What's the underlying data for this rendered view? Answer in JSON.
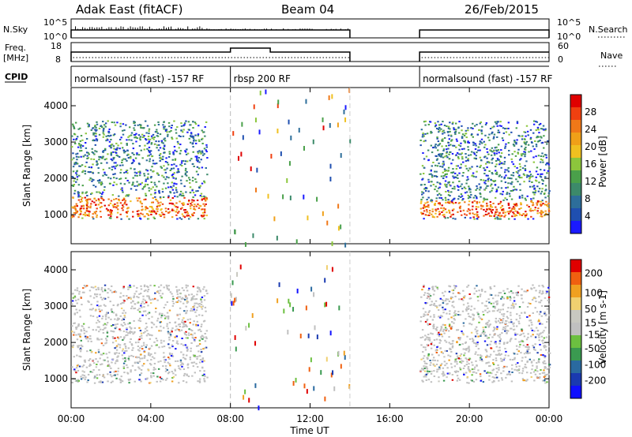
{
  "header": {
    "radar": "Adak East (fitACF)",
    "beam": "Beam 04",
    "date": "26/Feb/2015"
  },
  "strip_labels": {
    "nsky": "N.Sky",
    "nsky_ticks": [
      "10^5",
      "10^0"
    ],
    "nsearch": "N.Search",
    "nsearch_ticks": [
      "10^5",
      "10^0"
    ],
    "freq": "Freq.",
    "freq_unit": "[MHz]",
    "freq_ticks": [
      "18",
      "8"
    ],
    "nave": "Nave",
    "nave_ticks": [
      "60",
      "0"
    ],
    "cpid": "CPID"
  },
  "cpid_segments": [
    {
      "name": "normalsound (fast) -157 RF",
      "start_hour": 0.0,
      "end_hour": 8.0
    },
    {
      "name": "rbsp 200 RF",
      "start_hour": 8.0,
      "end_hour": 14.0
    },
    {
      "name": "normalsound (fast) -157 RF",
      "start_hour": 17.5,
      "end_hour": 24.0
    }
  ],
  "colors": {
    "power_scale": [
      "#1a1aff",
      "#1f4fb0",
      "#2d6e9a",
      "#3c8a6a",
      "#4aa04a",
      "#8cc63c",
      "#f0c020",
      "#f0a018",
      "#f07818",
      "#f04010",
      "#e00000"
    ],
    "velocity_scale": [
      "#e00000",
      "#f06010",
      "#f0a020",
      "#f0d070",
      "#c8c8c0",
      "#c0c0c0",
      "#6cc040",
      "#3a9a50",
      "#2a6aa0",
      "#1a3ab0",
      "#1010ff"
    ]
  },
  "chart_data": [
    {
      "type": "heatmap",
      "panel": "power",
      "ylabel": "Slant Range [km]",
      "xlabel": "",
      "colorbar_label": "Power [dB]",
      "colorbar_ticks": [
        "4",
        "8",
        "12",
        "16",
        "20",
        "24",
        "28"
      ],
      "colorbar_range": [
        0,
        32
      ],
      "ylim": [
        200,
        4500
      ],
      "yticks": [
        "1000",
        "2000",
        "3000",
        "4000"
      ],
      "xlim": [
        0,
        24
      ],
      "xticks": [
        "00:00",
        "04:00",
        "08:00",
        "12:00",
        "16:00",
        "20:00",
        "00:00"
      ],
      "echo_regions": [
        {
          "start_hour": 0.0,
          "end_hour": 6.8,
          "range_km": [
            900,
            3600
          ],
          "strong_band_km": [
            950,
            1500
          ],
          "peak_power_db": 30
        },
        {
          "start_hour": 17.5,
          "end_hour": 24.0,
          "range_km": [
            900,
            3600
          ],
          "strong_band_km": [
            950,
            1400
          ],
          "peak_power_db": 30
        }
      ]
    },
    {
      "type": "heatmap",
      "panel": "velocity",
      "ylabel": "Slant Range [km]",
      "xlabel": "Time UT",
      "colorbar_label": "Velocity [m s-1]",
      "colorbar_ticks": [
        "200",
        "100",
        "50",
        "15",
        "-15",
        "-50",
        "-100",
        "-200"
      ],
      "colorbar_range": [
        -250,
        250
      ],
      "ylim": [
        200,
        4500
      ],
      "yticks": [
        "1000",
        "2000",
        "3000",
        "4000"
      ],
      "xlim": [
        0,
        24
      ],
      "xticks": [
        "00:00",
        "04:00",
        "08:00",
        "12:00",
        "16:00",
        "20:00",
        "00:00"
      ],
      "echo_regions": [
        {
          "start_hour": 0.0,
          "end_hour": 6.8,
          "range_km": [
            900,
            3600
          ],
          "dominant_velocity_ms": 0
        },
        {
          "start_hour": 17.5,
          "end_hour": 24.0,
          "range_km": [
            900,
            3600
          ],
          "dominant_velocity_ms": 0
        }
      ]
    }
  ]
}
